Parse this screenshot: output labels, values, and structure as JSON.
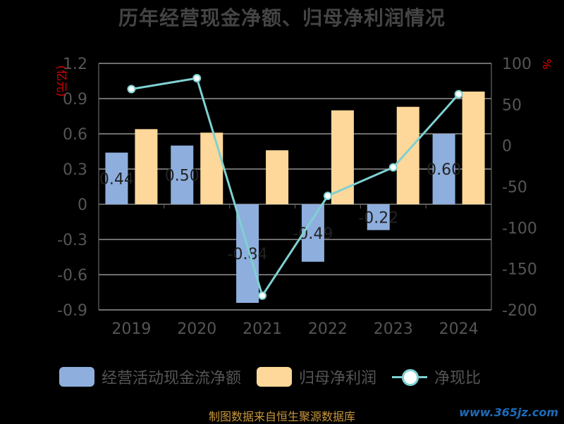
{
  "title": "历年经营现金净额、归母净利润情况",
  "left_unit": "亿元",
  "right_unit": "%",
  "legend": {
    "bar1": "经营活动现金流净额",
    "bar2": "归母净利润",
    "line": "净现比"
  },
  "colors": {
    "bar1": "#8eaedd",
    "bar2": "#fdd89a",
    "line": "#7fd1d1",
    "grid": "#b0b0b0",
    "axis_text": "#555555",
    "unit_text": "#e60000"
  },
  "source": "制图数据来自恒生聚源数据库",
  "watermark": "www.365jz.com",
  "chart_data": {
    "type": "bar+line",
    "categories": [
      "2019",
      "2020",
      "2021",
      "2022",
      "2023",
      "2024"
    ],
    "left_axis": {
      "ylim": [
        -0.9,
        1.2
      ],
      "ticks": [
        "1.2",
        "0.9",
        "0.6",
        "0.3",
        "0",
        "-0.3",
        "-0.6",
        "-0.9"
      ]
    },
    "right_axis": {
      "ylim": [
        -200,
        100
      ],
      "ticks": [
        "100",
        "50",
        "0",
        "-50",
        "-100",
        "-150",
        "-200"
      ]
    },
    "series": [
      {
        "name": "经营活动现金流净额",
        "axis": "left",
        "values": [
          0.44,
          0.5,
          -0.84,
          -0.49,
          -0.22,
          0.6
        ],
        "labels": [
          "0.44",
          "0.50",
          "-0.84",
          "-0.49",
          "-0.22",
          "0.60"
        ]
      },
      {
        "name": "归母净利润",
        "axis": "left",
        "values": [
          0.64,
          0.61,
          0.46,
          0.8,
          0.83,
          0.96
        ]
      },
      {
        "name": "净现比",
        "axis": "right",
        "type": "line",
        "values": [
          68.75,
          81.97,
          -182.61,
          -61.25,
          -26.51,
          62.5
        ]
      }
    ],
    "grid": true
  }
}
